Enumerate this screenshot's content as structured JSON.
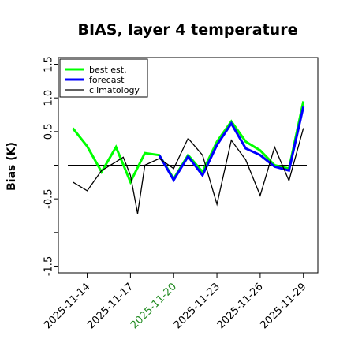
{
  "chart_data": {
    "type": "line",
    "title": "BIAS, layer 4 temperature",
    "ylabel": "Bias (K)",
    "xlabel": "",
    "ylim": [
      -1.6,
      1.6
    ],
    "xlim": [
      "2025-11-12T00:00",
      "2025-11-30T00:00"
    ],
    "yticks": [
      -1.5,
      -1.0,
      -0.5,
      0.0,
      0.5,
      1.0,
      1.5
    ],
    "ytick_labels": [
      "-1.5",
      "",
      "-0.5",
      "",
      "0.5",
      "1.0",
      "1.5"
    ],
    "xticks": [
      "2025-11-14",
      "2025-11-17",
      "2025-11-20",
      "2025-11-23",
      "2025-11-26",
      "2025-11-29"
    ],
    "xtick_colors": [
      "#000000",
      "#000000",
      "#228b22",
      "#000000",
      "#000000",
      "#000000"
    ],
    "zero_line": true,
    "grid": false,
    "legend": {
      "position": "top-left"
    },
    "series": [
      {
        "name": "best est.",
        "color": "#00ff00",
        "width": 3,
        "x": [
          "2025-11-13T00:00",
          "2025-11-14T00:00",
          "2025-11-15T00:00",
          "2025-11-16T00:00",
          "2025-11-17T00:00",
          "2025-11-18T00:00",
          "2025-11-19T00:00",
          "2025-11-20T00:00",
          "2025-11-21T00:00",
          "2025-11-22T00:00",
          "2025-11-23T00:00",
          "2025-11-24T00:00",
          "2025-11-25T00:00",
          "2025-11-26T00:00",
          "2025-11-27T00:00",
          "2025-11-28T00:00",
          "2025-11-29T00:00"
        ],
        "y": [
          0.55,
          0.28,
          -0.1,
          0.27,
          -0.25,
          0.18,
          0.15,
          -0.2,
          0.15,
          -0.1,
          0.35,
          0.65,
          0.35,
          0.22,
          0.0,
          -0.05,
          0.95
        ]
      },
      {
        "name": "forecast",
        "color": "#0000ff",
        "width": 3,
        "x": [
          "2025-11-19T00:00",
          "2025-11-20T00:00",
          "2025-11-21T00:00",
          "2025-11-22T00:00",
          "2025-11-23T00:00",
          "2025-11-24T00:00",
          "2025-11-25T00:00",
          "2025-11-26T00:00",
          "2025-11-27T00:00",
          "2025-11-28T00:00",
          "2025-11-29T00:00"
        ],
        "y": [
          0.15,
          -0.22,
          0.13,
          -0.15,
          0.3,
          0.62,
          0.25,
          0.15,
          -0.02,
          -0.08,
          0.87
        ]
      },
      {
        "name": "climatology",
        "color": "#000000",
        "width": 1.3,
        "x": [
          "2025-11-13T00:00",
          "2025-11-14T00:00",
          "2025-11-15T00:00",
          "2025-11-16T00:00",
          "2025-11-16T12:00",
          "2025-11-17T00:00",
          "2025-11-17T12:00",
          "2025-11-18T00:00",
          "2025-11-19T00:00",
          "2025-11-20T00:00",
          "2025-11-21T00:00",
          "2025-11-22T00:00",
          "2025-11-23T00:00",
          "2025-11-24T00:00",
          "2025-11-25T00:00",
          "2025-11-26T00:00",
          "2025-11-27T00:00",
          "2025-11-28T00:00",
          "2025-11-29T00:00"
        ],
        "y": [
          -0.25,
          -0.38,
          -0.08,
          0.05,
          0.12,
          -0.15,
          -0.72,
          0.0,
          0.1,
          -0.05,
          0.4,
          0.15,
          -0.58,
          0.37,
          0.08,
          -0.45,
          0.27,
          -0.23,
          0.55
        ]
      }
    ]
  }
}
